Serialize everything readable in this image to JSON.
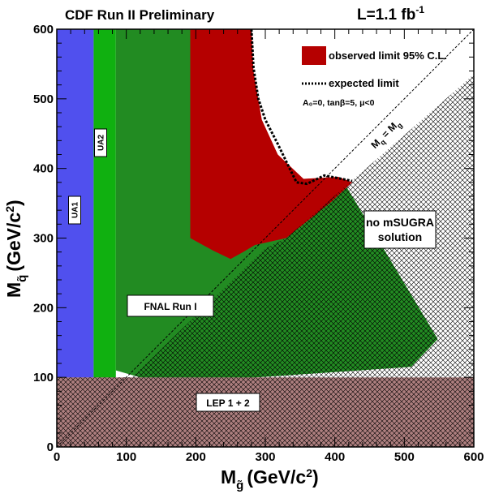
{
  "chart_data": {
    "type": "area",
    "title": "CDF Run II Preliminary",
    "luminosity": "L=1.1 fb",
    "luminosity_sup": "-1",
    "xlabel": {
      "symbol": "M",
      "sub": "g̃",
      "unit_pre": "(GeV/c",
      "unit_sup": "2",
      "unit_post": ")"
    },
    "ylabel": {
      "symbol": "M",
      "sub": "q̃",
      "unit_pre": "(GeV/c",
      "unit_sup": "2",
      "unit_post": ")"
    },
    "xlim": [
      0,
      600
    ],
    "ylim": [
      0,
      600
    ],
    "xticks": [
      0,
      100,
      200,
      300,
      400,
      500,
      600
    ],
    "yticks": [
      0,
      100,
      200,
      300,
      400,
      500,
      600
    ],
    "grid": false,
    "legend_position": "top-right",
    "legend": {
      "observed": "observed limit 95% C.L.",
      "expected": "expected limit",
      "params": "A₀=0, tanβ=5, μ<0"
    },
    "colors": {
      "ua1": "#5050ee",
      "ua2": "#10b010",
      "fnal": "#228b22",
      "observed": "#b50000",
      "lep": "#ad7f7f",
      "hatch": "#000000"
    },
    "regions": [
      {
        "name": "UA1",
        "label": "UA1",
        "polygon": [
          [
            0,
            0
          ],
          [
            53,
            0
          ],
          [
            53,
            600
          ],
          [
            0,
            600
          ]
        ]
      },
      {
        "name": "UA2",
        "label": "UA2",
        "polygon": [
          [
            53,
            0
          ],
          [
            85,
            0
          ],
          [
            85,
            600
          ],
          [
            53,
            600
          ]
        ]
      },
      {
        "name": "FNAL Run I",
        "label": "FNAL Run I",
        "polygon": [
          [
            85,
            0
          ],
          [
            85,
            600
          ],
          [
            275,
            600
          ],
          [
            275,
            528
          ],
          [
            295,
            412
          ],
          [
            335,
            385
          ],
          [
            410,
            385
          ],
          [
            548,
            155
          ],
          [
            510,
            115
          ],
          [
            140,
            90
          ],
          [
            120,
            100
          ],
          [
            85,
            110
          ]
        ]
      },
      {
        "name": "observed limit 95% C.L.",
        "label": "observed limit 95% C.L.",
        "polygon": [
          [
            197,
            600
          ],
          [
            280,
            600
          ],
          [
            283,
            540
          ],
          [
            295,
            470
          ],
          [
            318,
            420
          ],
          [
            355,
            385
          ],
          [
            405,
            388
          ],
          [
            425,
            380
          ],
          [
            395,
            352
          ],
          [
            330,
            300
          ],
          [
            285,
            290
          ],
          [
            268,
            280
          ],
          [
            250,
            270
          ],
          [
            225,
            282
          ],
          [
            192,
            300
          ],
          [
            192,
            600
          ]
        ]
      },
      {
        "name": "no mSUGRA solution",
        "label": "no mSUGRA solution",
        "polygon": [
          [
            600,
            535
          ],
          [
            600,
            100
          ],
          [
            478,
            100
          ],
          [
            575,
            150
          ],
          [
            495,
            200
          ],
          [
            415,
            258
          ],
          [
            330,
            300
          ]
        ]
      },
      {
        "name": "no mSUGRA solution lower",
        "label": "",
        "polygon": [
          [
            108,
            100
          ],
          [
            478,
            100
          ],
          [
            575,
            150
          ],
          [
            495,
            200
          ],
          [
            415,
            258
          ],
          [
            330,
            300
          ],
          [
            300,
            285
          ]
        ]
      },
      {
        "name": "LEP 1 + 2",
        "label": "LEP 1 + 2",
        "polygon": [
          [
            0,
            0
          ],
          [
            600,
            0
          ],
          [
            600,
            100
          ],
          [
            0,
            100
          ]
        ]
      }
    ],
    "expected_limit": [
      [
        280,
        600
      ],
      [
        283,
        545
      ],
      [
        290,
        500
      ],
      [
        300,
        470
      ],
      [
        318,
        435
      ],
      [
        335,
        400
      ],
      [
        345,
        380
      ],
      [
        360,
        378
      ],
      [
        385,
        390
      ],
      [
        410,
        385
      ],
      [
        425,
        382
      ]
    ],
    "diagonal": {
      "label": "M_q = M_g",
      "points": [
        [
          0,
          0
        ],
        [
          600,
          600
        ]
      ]
    },
    "annotations": [
      "FNAL Run I",
      "LEP 1 + 2",
      "UA1",
      "UA2",
      "no mSUGRA solution"
    ]
  }
}
